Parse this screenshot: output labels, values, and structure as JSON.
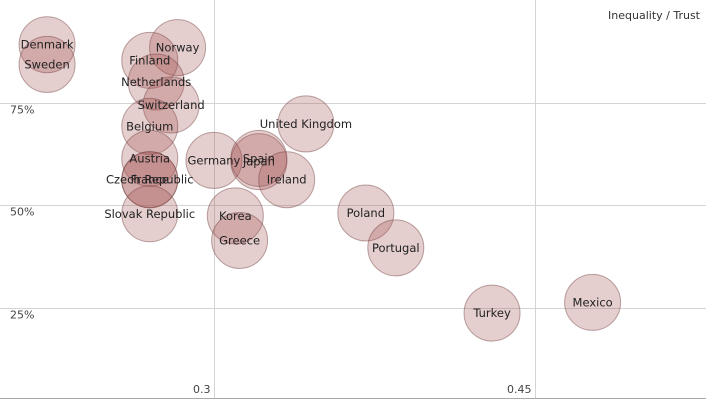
{
  "chart_data": {
    "type": "scatter",
    "title": "Inequality / Trust",
    "xlabel": "",
    "ylabel": "",
    "xlim": [
      0.2,
      0.53
    ],
    "ylim": [
      0.03,
      1.0
    ],
    "x_ticks": [
      {
        "value": 0.3,
        "label": "0.3"
      },
      {
        "value": 0.45,
        "label": "0.45"
      }
    ],
    "y_ticks": [
      {
        "value": 0.25,
        "label": "25%"
      },
      {
        "value": 0.5,
        "label": "50%"
      },
      {
        "value": 0.75,
        "label": "75%"
      }
    ],
    "grid": true,
    "colors": {
      "bubble_fill": "#a05050",
      "bubble_stroke": "#6e3c3c"
    },
    "points": [
      {
        "label": "Denmark",
        "x": 0.222,
        "y": 0.891
      },
      {
        "label": "Sweden",
        "x": 0.222,
        "y": 0.843
      },
      {
        "label": "Norway",
        "x": 0.283,
        "y": 0.884
      },
      {
        "label": "Finland",
        "x": 0.27,
        "y": 0.853
      },
      {
        "label": "Netherlands",
        "x": 0.273,
        "y": 0.8
      },
      {
        "label": "Switzerland",
        "x": 0.28,
        "y": 0.744
      },
      {
        "label": "Belgium",
        "x": 0.27,
        "y": 0.692
      },
      {
        "label": "Austria",
        "x": 0.27,
        "y": 0.614
      },
      {
        "label": "Czech Republic",
        "x": 0.27,
        "y": 0.562
      },
      {
        "label": "France",
        "x": 0.27,
        "y": 0.562
      },
      {
        "label": "Slovak Republic",
        "x": 0.27,
        "y": 0.479
      },
      {
        "label": "Germany",
        "x": 0.3,
        "y": 0.609
      },
      {
        "label": "Japan",
        "x": 0.321,
        "y": 0.606
      },
      {
        "label": "Spain",
        "x": 0.321,
        "y": 0.614
      },
      {
        "label": "United Kingdom",
        "x": 0.343,
        "y": 0.698
      },
      {
        "label": "Ireland",
        "x": 0.334,
        "y": 0.562
      },
      {
        "label": "Korea",
        "x": 0.31,
        "y": 0.474
      },
      {
        "label": "Greece",
        "x": 0.312,
        "y": 0.414
      },
      {
        "label": "Poland",
        "x": 0.371,
        "y": 0.481
      },
      {
        "label": "Portugal",
        "x": 0.385,
        "y": 0.396
      },
      {
        "label": "Turkey",
        "x": 0.43,
        "y": 0.237
      },
      {
        "label": "Mexico",
        "x": 0.477,
        "y": 0.263
      }
    ]
  }
}
